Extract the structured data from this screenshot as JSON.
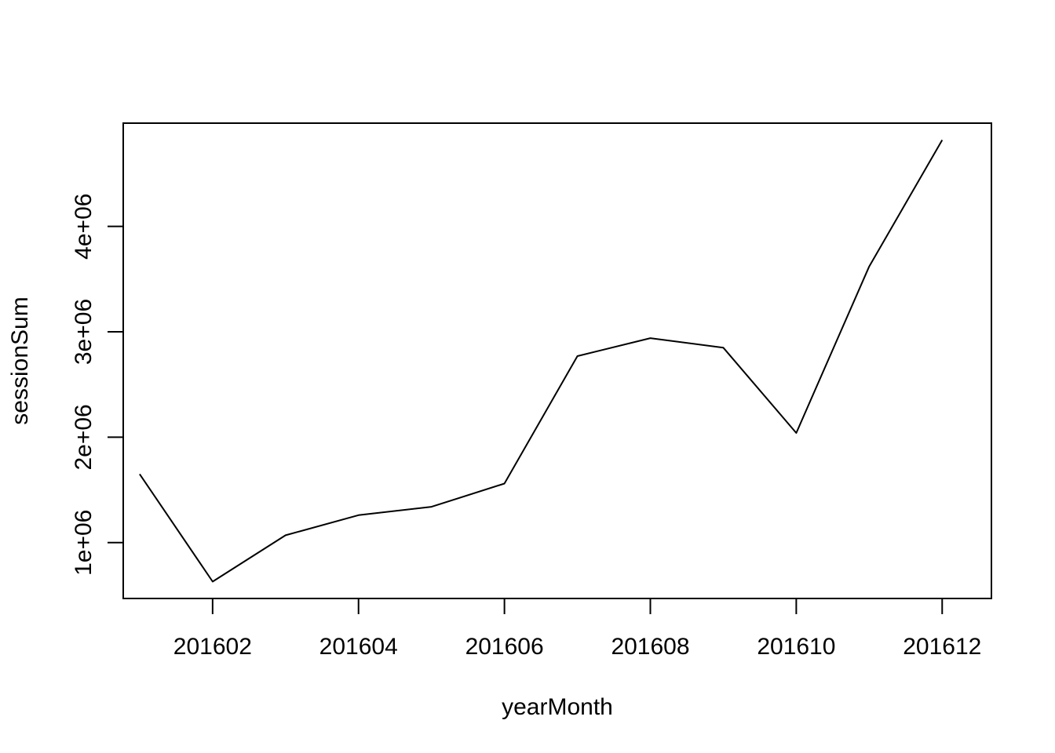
{
  "chart_data": {
    "type": "line",
    "xlabel": "yearMonth",
    "ylabel": "sessionSum",
    "x": [
      201601,
      201602,
      201603,
      201604,
      201605,
      201606,
      201607,
      201608,
      201609,
      201610,
      201611,
      201612
    ],
    "series": [
      {
        "values": [
          1650000,
          630000,
          1070000,
          1260000,
          1340000,
          1560000,
          2770000,
          2940000,
          2850000,
          2040000,
          3620000,
          4820000
        ]
      }
    ],
    "xlim": [
      201600.775,
      201612.675
    ],
    "ylim": [
      470000,
      4980000
    ],
    "x_ticks": [
      201602,
      201604,
      201606,
      201608,
      201610,
      201612
    ],
    "x_tick_labels": [
      "201602",
      "201604",
      "201606",
      "201608",
      "201610",
      "201612"
    ],
    "y_ticks": [
      1000000,
      2000000,
      3000000,
      4000000
    ],
    "y_tick_labels": [
      "1e+06",
      "2e+06",
      "3e+06",
      "4e+06"
    ],
    "line_color": "#000000",
    "grid": false,
    "legend": false
  }
}
